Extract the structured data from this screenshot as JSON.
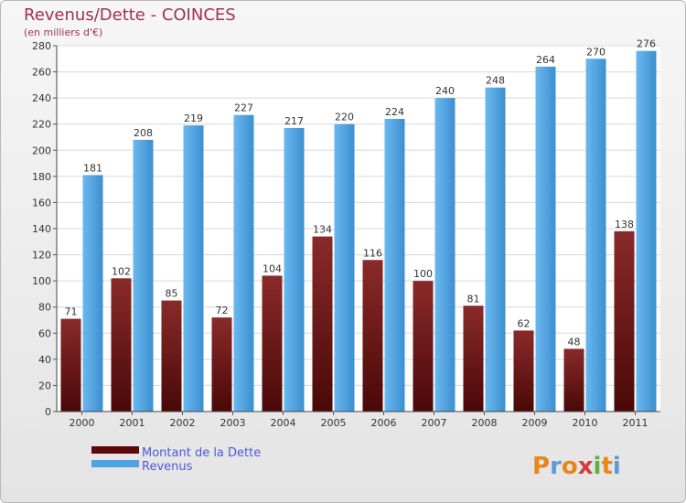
{
  "chart_data": {
    "type": "bar",
    "title": "Revenus/Dette - COINCES",
    "subtitle": "(en milliers d'€)",
    "categories": [
      "2000",
      "2001",
      "2002",
      "2003",
      "2004",
      "2005",
      "2006",
      "2007",
      "2008",
      "2009",
      "2010",
      "2011"
    ],
    "series": [
      {
        "name": "Montant de la Dette",
        "values": [
          71,
          102,
          85,
          72,
          104,
          134,
          116,
          100,
          81,
          62,
          48,
          138
        ],
        "color": "#7a1a1a"
      },
      {
        "name": "Revenus",
        "values": [
          181,
          208,
          219,
          227,
          217,
          220,
          224,
          240,
          248,
          264,
          270,
          276
        ],
        "color": "#4fa3e0"
      }
    ],
    "ylim": [
      0,
      280
    ],
    "yticks": [
      0,
      20,
      40,
      60,
      80,
      100,
      120,
      140,
      160,
      180,
      200,
      220,
      240,
      260,
      280
    ],
    "grid": true,
    "legend": "bottom-left"
  },
  "logo": {
    "letters": [
      "P",
      "r",
      "o",
      "x",
      "i",
      "t",
      "i"
    ],
    "colors": [
      "#e8861a",
      "#5b9bd5",
      "#e8861a",
      "#d23c3c",
      "#5fb33c",
      "#e8861a",
      "#5b9bd5"
    ]
  }
}
